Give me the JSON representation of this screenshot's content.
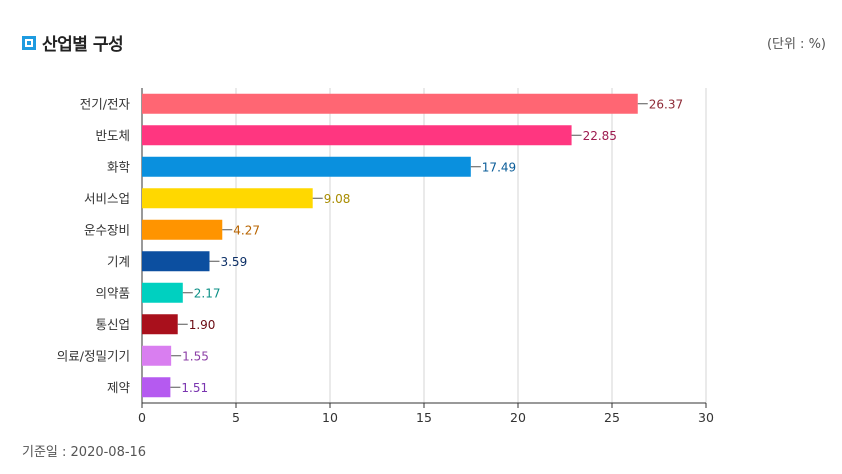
{
  "header": {
    "title": "산업별 구성",
    "unit": "(단위 : %)"
  },
  "footer": {
    "date_text": "기준일 : 2020-08-16"
  },
  "chart_data": {
    "type": "bar",
    "orientation": "horizontal",
    "title": "산업별 구성",
    "xlabel": "",
    "ylabel": "",
    "xlim": [
      0,
      30
    ],
    "xticks": [
      0,
      5,
      10,
      15,
      20,
      25,
      30
    ],
    "grid": true,
    "categories": [
      "전기/전자",
      "반도체",
      "화학",
      "서비스업",
      "운수장비",
      "기계",
      "의약품",
      "통신업",
      "의료/정밀기기",
      "제약"
    ],
    "values": [
      26.37,
      22.85,
      17.49,
      9.08,
      4.27,
      3.59,
      2.17,
      1.9,
      1.55,
      1.51
    ],
    "value_labels": [
      "26.37",
      "22.85",
      "17.49",
      "9.08",
      "4.27",
      "3.59",
      "2.17",
      "1.90",
      "1.55",
      "1.51"
    ],
    "bar_colors": [
      "#ff6673",
      "#ff3680",
      "#0a90de",
      "#ffd800",
      "#ff9400",
      "#0c4fa0",
      "#00d0c0",
      "#a9101c",
      "#d97ef0",
      "#b55af0"
    ],
    "label_colors": [
      "#8e2a36",
      "#9e1c50",
      "#0a5c98",
      "#a88c00",
      "#b86400",
      "#0c2f66",
      "#0a8f85",
      "#6b0a12",
      "#8c3fa6",
      "#7a35b0"
    ]
  }
}
